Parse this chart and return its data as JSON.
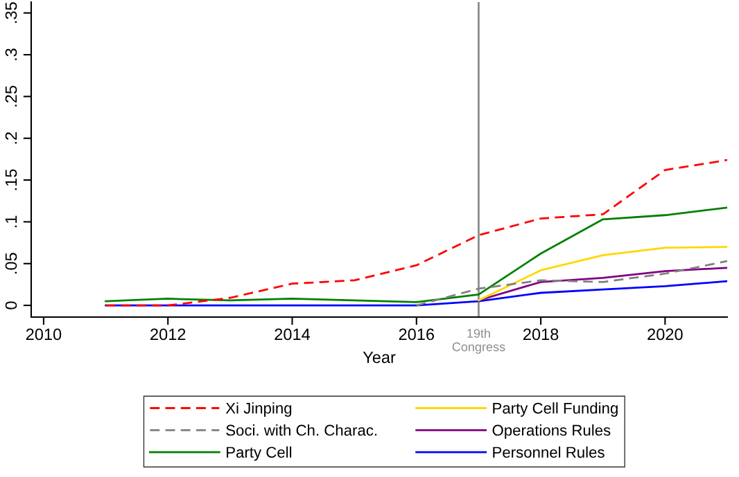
{
  "chart_data": {
    "type": "line",
    "xlabel": "Year",
    "x": [
      2011,
      2012,
      2013,
      2014,
      2015,
      2016,
      2017,
      2018,
      2019,
      2020,
      2021
    ],
    "series": [
      {
        "name": "Xi Jinping",
        "color": "#ff0000",
        "line_style": "dashed",
        "values": [
          0,
          0,
          0.009,
          0.026,
          0.03,
          0.048,
          0.084,
          0.104,
          0.109,
          0.162,
          0.174
        ]
      },
      {
        "name": "Soci. with Ch. Charac.",
        "color": "#808080",
        "line_style": "dashed",
        "values": [
          null,
          null,
          null,
          null,
          null,
          0,
          0.02,
          0.03,
          0.028,
          0.038,
          0.053
        ]
      },
      {
        "name": "Party Cell",
        "color": "#008000",
        "line_style": "solid",
        "values": [
          0.005,
          0.008,
          0.006,
          0.008,
          0.006,
          0.004,
          0.013,
          0.062,
          0.103,
          0.108,
          0.117
        ]
      },
      {
        "name": "Party Cell Funding",
        "color": "#ffd700",
        "line_style": "solid",
        "values": [
          null,
          null,
          null,
          null,
          null,
          null,
          0.006,
          0.042,
          0.06,
          0.069,
          0.07
        ]
      },
      {
        "name": "Operations Rules",
        "color": "#800080",
        "line_style": "solid",
        "values": [
          null,
          null,
          null,
          null,
          null,
          null,
          0.006,
          0.028,
          0.033,
          0.041,
          0.045
        ]
      },
      {
        "name": "Personnel Rules",
        "color": "#0000ff",
        "line_style": "solid",
        "values": [
          0,
          0,
          0,
          0,
          0,
          0,
          0.005,
          0.015,
          0.019,
          0.023,
          0.029
        ]
      }
    ],
    "xlim": [
      2009.8,
      2021.0
    ],
    "xticks": [
      2010,
      2012,
      2014,
      2016,
      2018,
      2020
    ],
    "ylim": [
      -0.014,
      0.363
    ],
    "yticks": [
      0,
      {
        "value": 0.05,
        "label": ".05"
      },
      {
        "value": 0.1,
        "label": ".1"
      },
      {
        "value": 0.15,
        "label": ".15"
      },
      {
        "value": 0.2,
        "label": ".2"
      },
      {
        "value": 0.25,
        "label": ".25"
      },
      {
        "value": 0.3,
        "label": ".3"
      },
      {
        "value": 0.35,
        "label": ".35"
      }
    ],
    "ref_lines": [
      {
        "axis": "x",
        "value": 2017,
        "label": "19th\nCongress",
        "color": "#8c8c8c"
      }
    ],
    "grid": false,
    "legend": "bottom",
    "marker": "none"
  }
}
